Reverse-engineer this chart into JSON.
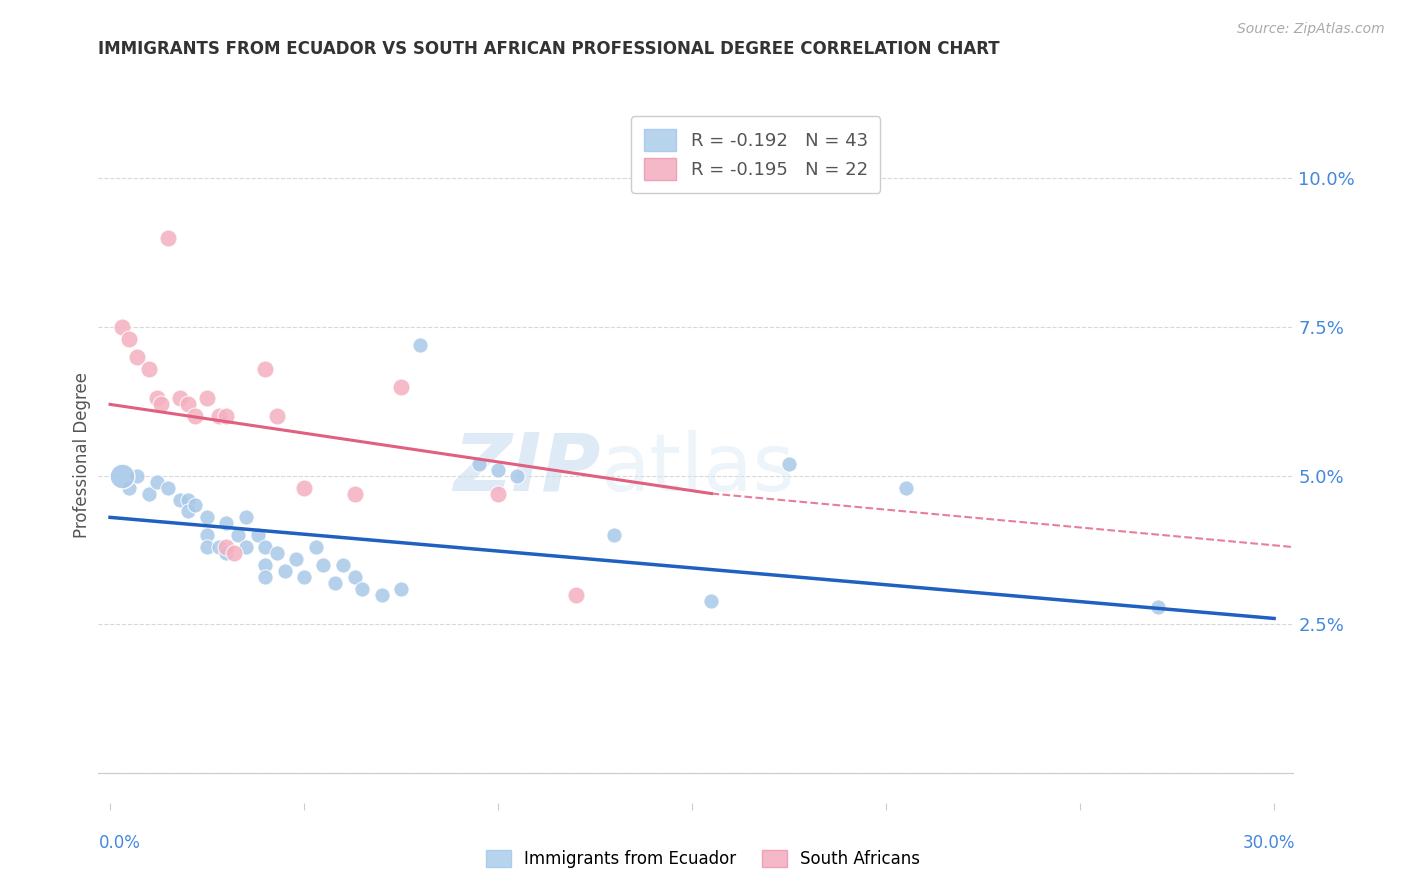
{
  "title": "IMMIGRANTS FROM ECUADOR VS SOUTH AFRICAN PROFESSIONAL DEGREE CORRELATION CHART",
  "source": "Source: ZipAtlas.com",
  "ylabel": "Professional Degree",
  "y_ticks": [
    0.0,
    0.025,
    0.05,
    0.075,
    0.1
  ],
  "y_tick_labels": [
    "",
    "2.5%",
    "5.0%",
    "7.5%",
    "10.0%"
  ],
  "x_ticks": [
    0.0,
    0.05,
    0.1,
    0.15,
    0.2,
    0.25,
    0.3
  ],
  "xlim": [
    -0.003,
    0.305
  ],
  "ylim": [
    -0.005,
    0.112
  ],
  "watermark_zip": "ZIP",
  "watermark_atlas": "atlas",
  "legend_label1": "R = -0.192   N = 43",
  "legend_label2": "R = -0.195   N = 22",
  "legend_label_blue": "Immigrants from Ecuador",
  "legend_label_pink": "South Africans",
  "blue_color": "#a8c8e8",
  "pink_color": "#f4b0c0",
  "blue_line_color": "#2060c0",
  "pink_line_color": "#e06080",
  "blue_scatter": [
    [
      0.005,
      0.048
    ],
    [
      0.007,
      0.05
    ],
    [
      0.01,
      0.047
    ],
    [
      0.012,
      0.049
    ],
    [
      0.015,
      0.048
    ],
    [
      0.018,
      0.046
    ],
    [
      0.02,
      0.046
    ],
    [
      0.02,
      0.044
    ],
    [
      0.022,
      0.045
    ],
    [
      0.025,
      0.043
    ],
    [
      0.025,
      0.04
    ],
    [
      0.025,
      0.038
    ],
    [
      0.028,
      0.038
    ],
    [
      0.03,
      0.042
    ],
    [
      0.03,
      0.037
    ],
    [
      0.033,
      0.04
    ],
    [
      0.035,
      0.043
    ],
    [
      0.035,
      0.038
    ],
    [
      0.038,
      0.04
    ],
    [
      0.04,
      0.038
    ],
    [
      0.04,
      0.035
    ],
    [
      0.04,
      0.033
    ],
    [
      0.043,
      0.037
    ],
    [
      0.045,
      0.034
    ],
    [
      0.048,
      0.036
    ],
    [
      0.05,
      0.033
    ],
    [
      0.053,
      0.038
    ],
    [
      0.055,
      0.035
    ],
    [
      0.058,
      0.032
    ],
    [
      0.06,
      0.035
    ],
    [
      0.063,
      0.033
    ],
    [
      0.065,
      0.031
    ],
    [
      0.07,
      0.03
    ],
    [
      0.075,
      0.031
    ],
    [
      0.08,
      0.072
    ],
    [
      0.095,
      0.052
    ],
    [
      0.1,
      0.051
    ],
    [
      0.105,
      0.05
    ],
    [
      0.13,
      0.04
    ],
    [
      0.155,
      0.029
    ],
    [
      0.175,
      0.052
    ],
    [
      0.205,
      0.048
    ],
    [
      0.27,
      0.028
    ]
  ],
  "blue_scatter_large": [
    [
      0.003,
      0.05
    ]
  ],
  "pink_scatter": [
    [
      0.003,
      0.075
    ],
    [
      0.005,
      0.073
    ],
    [
      0.007,
      0.07
    ],
    [
      0.01,
      0.068
    ],
    [
      0.012,
      0.063
    ],
    [
      0.013,
      0.062
    ],
    [
      0.015,
      0.09
    ],
    [
      0.018,
      0.063
    ],
    [
      0.02,
      0.062
    ],
    [
      0.022,
      0.06
    ],
    [
      0.025,
      0.063
    ],
    [
      0.028,
      0.06
    ],
    [
      0.03,
      0.06
    ],
    [
      0.03,
      0.038
    ],
    [
      0.032,
      0.037
    ],
    [
      0.04,
      0.068
    ],
    [
      0.043,
      0.06
    ],
    [
      0.05,
      0.048
    ],
    [
      0.063,
      0.047
    ],
    [
      0.075,
      0.065
    ],
    [
      0.1,
      0.047
    ],
    [
      0.12,
      0.03
    ]
  ],
  "blue_line": [
    [
      0.0,
      0.043
    ],
    [
      0.3,
      0.026
    ]
  ],
  "pink_line_solid": [
    [
      0.0,
      0.062
    ],
    [
      0.155,
      0.047
    ]
  ],
  "pink_line_dashed": [
    [
      0.155,
      0.047
    ],
    [
      0.305,
      0.038
    ]
  ],
  "background_color": "#ffffff",
  "grid_color": "#d8d8d8"
}
